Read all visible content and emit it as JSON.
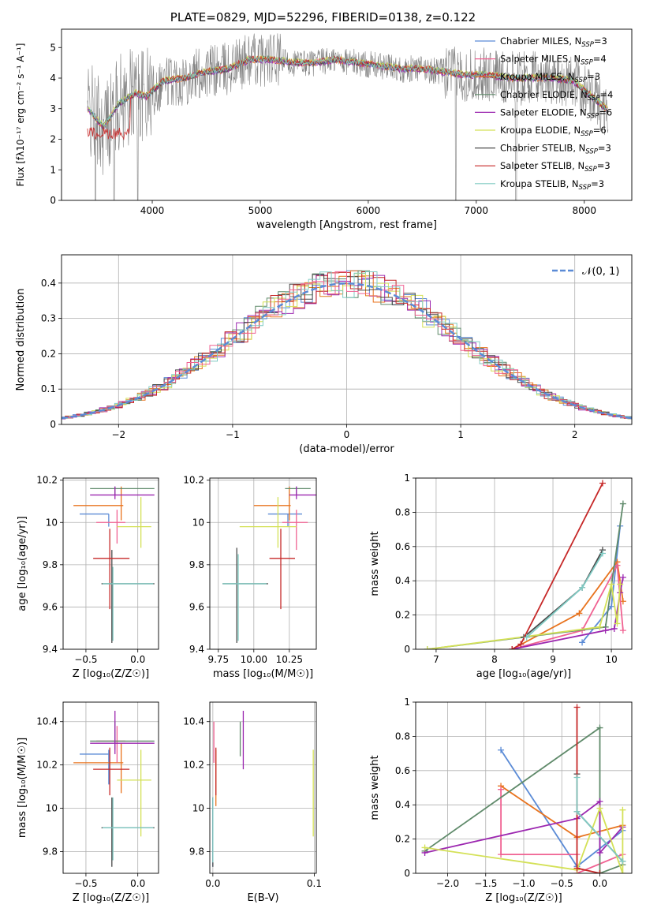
{
  "figure": {
    "title": "PLATE=0829, MJD=52296, FIBERID=0138, z=0.122"
  },
  "colors": {
    "Chabrier MILES": "#5b8bd6",
    "Salpeter MILES": "#e8731e",
    "Kroupa MILES": "#e07d19",
    "Chabrier ELODIE": "#5f8a6a",
    "Salpeter ELODIE": "#9c27b0",
    "Kroupa ELODIE": "#d4e157",
    "Chabrier STELIB": "#4a4a4a",
    "Salpeter STELIB": "#c62828",
    "Kroupa STELIB": "#80cbc4",
    "Salpeter MILES pink": "#f06292",
    "data": "#808080"
  },
  "chart_data": [
    {
      "id": "spectrum",
      "type": "line",
      "title": "PLATE=0829, MJD=52296, FIBERID=0138, z=0.122",
      "xlabel": "wavelength [Angstrom, rest frame]",
      "ylabel": "Flux [fλ10⁻¹⁷ erg cm⁻² s⁻¹ A⁻¹]",
      "xlim": [
        3160,
        8440
      ],
      "ylim": [
        0,
        5.6
      ],
      "xticks": [
        4000,
        5000,
        6000,
        7000,
        8000
      ],
      "yticks": [
        0,
        1,
        2,
        3,
        4,
        5
      ],
      "grid": false,
      "legend_position": "upper right",
      "series": [
        {
          "name": "Chabrier MILES, N_SSP=3",
          "legend": "Chabrier MILES, N",
          "sub": "SSP",
          "suffix": "=3",
          "color": "#5b8bd6"
        },
        {
          "name": "Salpeter MILES, N_SSP=4",
          "legend": "Salpeter MILES, N",
          "sub": "SSP",
          "suffix": "=4",
          "color": "#f06292"
        },
        {
          "name": "Kroupa MILES, N_SSP=3",
          "legend": "Kroupa MILES, N",
          "sub": "SSP",
          "suffix": "=3",
          "color": "#e8731e"
        },
        {
          "name": "Chabrier ELODIE, N_SSP=4",
          "legend": "Chabrier ELODIE, N",
          "sub": "SSP",
          "suffix": "=4",
          "color": "#5f8a6a"
        },
        {
          "name": "Salpeter ELODIE, N_SSP=6",
          "legend": "Salpeter ELODIE, N",
          "sub": "SSP",
          "suffix": "=6",
          "color": "#9c27b0"
        },
        {
          "name": "Kroupa ELODIE, N_SSP=6",
          "legend": "Kroupa ELODIE, N",
          "sub": "SSP",
          "suffix": "=6",
          "color": "#d4e157"
        },
        {
          "name": "Chabrier STELIB, N_SSP=3",
          "legend": "Chabrier STELIB, N",
          "sub": "SSP",
          "suffix": "=3",
          "color": "#4a4a4a"
        },
        {
          "name": "Salpeter STELIB, N_SSP=3",
          "legend": "Salpeter STELIB, N",
          "sub": "SSP",
          "suffix": "=3",
          "color": "#c62828"
        },
        {
          "name": "Kroupa STELIB, N_SSP=3",
          "legend": "Kroupa STELIB, N",
          "sub": "SSP",
          "suffix": "=3",
          "color": "#80cbc4"
        }
      ],
      "approx_model_flux": {
        "x": [
          3400,
          3550,
          3700,
          3850,
          3950,
          4100,
          4300,
          4500,
          4700,
          4900,
          5100,
          5300,
          5500,
          5700,
          5900,
          6100,
          6300,
          6500,
          6700,
          6900,
          7100,
          7300,
          7500,
          7700,
          7900,
          8100,
          8200
        ],
        "y": [
          3.0,
          2.4,
          3.2,
          3.5,
          3.4,
          3.9,
          4.0,
          4.2,
          4.3,
          4.6,
          4.6,
          4.5,
          4.5,
          4.6,
          4.5,
          4.4,
          4.3,
          4.3,
          4.2,
          4.1,
          4.1,
          4.0,
          4.0,
          4.0,
          3.9,
          3.3,
          3.0
        ]
      }
    },
    {
      "id": "residuals",
      "type": "step",
      "xlabel": "(data-model)/error",
      "ylabel": "Normed distribution",
      "xlim": [
        -2.5,
        2.5
      ],
      "ylim": [
        0,
        0.48
      ],
      "xticks": [
        -2,
        -1,
        0,
        1,
        2
      ],
      "xticklabels": [
        "−2",
        "−1",
        "0",
        "1",
        "2"
      ],
      "yticks": [
        0,
        0.1,
        0.2,
        0.3,
        0.4
      ],
      "grid": true,
      "legend": "𝒩(0, 1)",
      "legend_position": "upper right",
      "gaussian": {
        "mu": 0,
        "sigma": 1
      }
    },
    {
      "id": "age_vs_Z",
      "type": "scatter",
      "xlabel": "Z [log₁₀(Z/Z☉)]",
      "ylabel": "age  [log₁₀(age/yr)]",
      "xlim": [
        -0.72,
        0.2
      ],
      "ylim": [
        9.4,
        10.21
      ],
      "xticks": [
        -0.5,
        0.0
      ],
      "xticklabels": [
        "−0.5",
        "0.0"
      ],
      "yticks": [
        9.4,
        9.6,
        9.8,
        10.0,
        10.2
      ],
      "grid": true,
      "points": [
        {
          "x": -0.28,
          "y": 10.04,
          "xerr": [
            0.28,
            0.0
          ],
          "yerr": [
            0.06,
            0.0
          ],
          "color": "#5b8bd6"
        },
        {
          "x": -0.16,
          "y": 10.08,
          "xerr": [
            0.46,
            0.02
          ],
          "yerr": [
            0.07,
            0.09
          ],
          "color": "#e8731e"
        },
        {
          "x": -0.2,
          "y": 10.0,
          "xerr": [
            0.2,
            0.08
          ],
          "yerr": [
            0.1,
            0.06
          ],
          "color": "#f06292"
        },
        {
          "x": -0.22,
          "y": 10.16,
          "xerr": [
            0.24,
            0.38
          ],
          "yerr": [
            0.03,
            0.01
          ],
          "color": "#5f8a6a"
        },
        {
          "x": -0.22,
          "y": 10.13,
          "xerr": [
            0.24,
            0.38
          ],
          "yerr": [
            0.02,
            0.04
          ],
          "color": "#9c27b0"
        },
        {
          "x": 0.03,
          "y": 9.98,
          "xerr": [
            0.23,
            0.1
          ],
          "yerr": [
            0.1,
            0.14
          ],
          "color": "#d4e157"
        },
        {
          "x": -0.25,
          "y": 9.71,
          "xerr": [
            0.1,
            0.41
          ],
          "yerr": [
            0.28,
            0.16
          ],
          "color": "#4a4a4a"
        },
        {
          "x": -0.27,
          "y": 9.83,
          "xerr": [
            0.16,
            0.19
          ],
          "yerr": [
            0.24,
            0.14
          ],
          "color": "#c62828"
        },
        {
          "x": -0.24,
          "y": 9.71,
          "xerr": [
            0.1,
            0.39
          ],
          "yerr": [
            0.27,
            0.08
          ],
          "color": "#80cbc4"
        }
      ]
    },
    {
      "id": "age_vs_mass",
      "type": "scatter",
      "xlabel": "mass [log₁₀(M/M☉)]",
      "ylabel": "",
      "xlim": [
        9.69,
        10.44
      ],
      "ylim": [
        9.4,
        10.21
      ],
      "xticks": [
        9.75,
        10.0,
        10.25
      ],
      "xticklabels": [
        "9.75",
        "10.00",
        "10.25"
      ],
      "yticks": [
        9.4,
        9.6,
        9.8,
        10.0,
        10.2
      ],
      "grid": true,
      "points": [
        {
          "x": 10.24,
          "y": 10.04,
          "xerr": [
            0.14,
            0.1
          ],
          "yerr": [
            0.06,
            0.0
          ],
          "color": "#5b8bd6"
        },
        {
          "x": 10.25,
          "y": 10.08,
          "xerr": [
            0.25,
            0.01
          ],
          "yerr": [
            0.07,
            0.09
          ],
          "color": "#e8731e"
        },
        {
          "x": 10.3,
          "y": 10.0,
          "xerr": [
            0.1,
            0.08
          ],
          "yerr": [
            0.13,
            0.06
          ],
          "color": "#f06292"
        },
        {
          "x": 10.3,
          "y": 10.16,
          "xerr": [
            0.08,
            0.1
          ],
          "yerr": [
            0.03,
            0.01
          ],
          "color": "#5f8a6a"
        },
        {
          "x": 10.3,
          "y": 10.13,
          "xerr": [
            0.05,
            0.16
          ],
          "yerr": [
            0.02,
            0.04
          ],
          "color": "#9c27b0"
        },
        {
          "x": 10.17,
          "y": 9.98,
          "xerr": [
            0.27,
            0.13
          ],
          "yerr": [
            0.1,
            0.14
          ],
          "color": "#d4e157"
        },
        {
          "x": 9.88,
          "y": 9.71,
          "xerr": [
            0.1,
            0.22
          ],
          "yerr": [
            0.28,
            0.17
          ],
          "color": "#4a4a4a"
        },
        {
          "x": 10.19,
          "y": 9.83,
          "xerr": [
            0.08,
            0.1
          ],
          "yerr": [
            0.24,
            0.14
          ],
          "color": "#c62828"
        },
        {
          "x": 9.89,
          "y": 9.71,
          "xerr": [
            0.11,
            0.2
          ],
          "yerr": [
            0.27,
            0.14
          ],
          "color": "#80cbc4"
        }
      ]
    },
    {
      "id": "mass_weight_vs_age",
      "type": "line",
      "xlabel": "age  [log₁₀(age/yr)]",
      "ylabel": "mass weight",
      "xlim": [
        6.65,
        10.35
      ],
      "ylim": [
        0,
        1.0
      ],
      "xticks": [
        7,
        8,
        9,
        10
      ],
      "yticks": [
        0.0,
        0.2,
        0.4,
        0.6,
        0.8,
        1.0
      ],
      "grid": true,
      "series": [
        {
          "color": "#5b8bd6",
          "x": [
            9.5,
            10.0,
            10.15
          ],
          "y": [
            0.04,
            0.25,
            0.72
          ]
        },
        {
          "color": "#e8731e",
          "x": [
            8.3,
            9.45,
            10.1,
            10.2
          ],
          "y": [
            0.0,
            0.21,
            0.51,
            0.28
          ]
        },
        {
          "color": "#f06292",
          "x": [
            8.3,
            9.5,
            10.1,
            10.2
          ],
          "y": [
            0.0,
            0.11,
            0.49,
            0.11
          ]
        },
        {
          "color": "#5f8a6a",
          "x": [
            6.85,
            9.9,
            10.2
          ],
          "y": [
            0.0,
            0.13,
            0.85
          ]
        },
        {
          "color": "#9c27b0",
          "x": [
            8.3,
            9.9,
            10.05,
            10.15,
            10.2
          ],
          "y": [
            0.0,
            0.11,
            0.12,
            0.33,
            0.42
          ]
        },
        {
          "color": "#d4e157",
          "x": [
            6.85,
            9.8,
            10.0,
            10.1,
            10.15
          ],
          "y": [
            0.0,
            0.13,
            0.38,
            0.15,
            0.38
          ]
        },
        {
          "color": "#4a4a4a",
          "x": [
            8.5,
            9.5,
            9.85
          ],
          "y": [
            0.07,
            0.36,
            0.58
          ]
        },
        {
          "color": "#c62828",
          "x": [
            8.3,
            8.45,
            9.85
          ],
          "y": [
            0.0,
            0.03,
            0.97
          ]
        },
        {
          "color": "#80cbc4",
          "x": [
            8.55,
            9.5,
            9.85
          ],
          "y": [
            0.07,
            0.36,
            0.56
          ]
        }
      ]
    },
    {
      "id": "mass_vs_Z",
      "type": "scatter",
      "xlabel": "Z [log₁₀(Z/Z☉)]",
      "ylabel": "mass [log₁₀(M/M☉)]",
      "xlim": [
        -0.72,
        0.2
      ],
      "ylim": [
        9.7,
        10.49
      ],
      "xticks": [
        -0.5,
        0.0
      ],
      "xticklabels": [
        "−0.5",
        "0.0"
      ],
      "yticks": [
        9.8,
        10.0,
        10.2,
        10.4
      ],
      "grid": true,
      "points": [
        {
          "x": -0.28,
          "y": 10.25,
          "xerr": [
            0.28,
            0.0
          ],
          "yerr": [
            0.14,
            0.02
          ],
          "color": "#5b8bd6"
        },
        {
          "x": -0.16,
          "y": 10.21,
          "xerr": [
            0.46,
            0.02
          ],
          "yerr": [
            0.14,
            0.09
          ],
          "color": "#e8731e"
        },
        {
          "x": -0.2,
          "y": 10.31,
          "xerr": [
            0.2,
            0.08
          ],
          "yerr": [
            0.1,
            0.07
          ],
          "color": "#f06292"
        },
        {
          "x": -0.22,
          "y": 10.31,
          "xerr": [
            0.24,
            0.38
          ],
          "yerr": [
            0.04,
            0.09
          ],
          "color": "#5f8a6a"
        },
        {
          "x": -0.22,
          "y": 10.3,
          "xerr": [
            0.24,
            0.38
          ],
          "yerr": [
            0.05,
            0.15
          ],
          "color": "#9c27b0"
        },
        {
          "x": 0.03,
          "y": 10.13,
          "xerr": [
            0.23,
            0.1
          ],
          "yerr": [
            0.26,
            0.14
          ],
          "color": "#d4e157"
        },
        {
          "x": -0.25,
          "y": 9.91,
          "xerr": [
            0.1,
            0.41
          ],
          "yerr": [
            0.18,
            0.14
          ],
          "color": "#4a4a4a"
        },
        {
          "x": -0.27,
          "y": 10.18,
          "xerr": [
            0.16,
            0.19
          ],
          "yerr": [
            0.12,
            0.1
          ],
          "color": "#c62828"
        },
        {
          "x": -0.24,
          "y": 9.91,
          "xerr": [
            0.1,
            0.39
          ],
          "yerr": [
            0.15,
            0.14
          ],
          "color": "#80cbc4"
        }
      ]
    },
    {
      "id": "mass_vs_EBV",
      "type": "scatter",
      "xlabel": "E(B-V)",
      "ylabel": "",
      "xlim": [
        -0.003,
        0.102
      ],
      "ylim": [
        9.7,
        10.49
      ],
      "xticks": [
        0.0,
        0.1
      ],
      "xticklabels": [
        "0.0",
        "0.1"
      ],
      "yticks": [
        9.8,
        10.0,
        10.2,
        10.4
      ],
      "grid": true,
      "points": [
        {
          "x": 0.0,
          "y": 9.9,
          "yerr": [
            0.17,
            0.15
          ],
          "color": "#5b8bd6"
        },
        {
          "x": 0.003,
          "y": 10.15,
          "yerr": [
            0.14,
            0.12
          ],
          "color": "#e8731e"
        },
        {
          "x": 0.001,
          "y": 10.31,
          "yerr": [
            0.1,
            0.09
          ],
          "color": "#f06292"
        },
        {
          "x": 0.027,
          "y": 10.3,
          "yerr": [
            0.06,
            0.1
          ],
          "color": "#5f8a6a"
        },
        {
          "x": 0.03,
          "y": 10.31,
          "yerr": [
            0.13,
            0.14
          ],
          "color": "#9c27b0"
        },
        {
          "x": 0.099,
          "y": 10.13,
          "yerr": [
            0.26,
            0.14
          ],
          "color": "#d4e157"
        },
        {
          "x": 0.0,
          "y": 9.92,
          "yerr": [
            0.19,
            0.13
          ],
          "color": "#4a4a4a"
        },
        {
          "x": 0.003,
          "y": 10.18,
          "yerr": [
            0.12,
            0.1
          ],
          "color": "#c62828"
        },
        {
          "x": 0.0,
          "y": 9.91,
          "yerr": [
            0.16,
            0.14
          ],
          "color": "#80cbc4"
        }
      ]
    },
    {
      "id": "mass_weight_vs_Z",
      "type": "line",
      "xlabel": "Z [log₁₀(Z/Z☉)]",
      "ylabel": "mass weight",
      "xlim": [
        -2.42,
        0.42
      ],
      "ylim": [
        0,
        1.0
      ],
      "xticks": [
        -2.0,
        -1.5,
        -1.0,
        -0.5,
        0.0
      ],
      "xticklabels": [
        "−2.0",
        "−1.5",
        "−1.0",
        "−0.5",
        "0.0"
      ],
      "yticks": [
        0.0,
        0.2,
        0.4,
        0.6,
        0.8,
        1.0
      ],
      "grid": true,
      "series": [
        {
          "color": "#5b8bd6",
          "x": [
            -1.3,
            -0.3,
            0.3
          ],
          "y": [
            0.72,
            0.04,
            0.25
          ]
        },
        {
          "color": "#e8731e",
          "x": [
            -1.3,
            -0.3,
            0.3
          ],
          "y": [
            0.51,
            0.21,
            0.28
          ]
        },
        {
          "color": "#f06292",
          "x": [
            -1.3,
            -1.3,
            -0.3,
            -0.3,
            0.3
          ],
          "y": [
            0.49,
            0.11,
            0.11,
            0.0,
            0.11
          ]
        },
        {
          "color": "#5f8a6a",
          "x": [
            -2.3,
            0.0,
            0.0,
            0.3
          ],
          "y": [
            0.13,
            0.85,
            0.0,
            0.05
          ]
        },
        {
          "color": "#9c27b0",
          "x": [
            -2.3,
            -0.3,
            0.0,
            0.0,
            0.3
          ],
          "y": [
            0.12,
            0.32,
            0.42,
            0.12,
            0.27
          ]
        },
        {
          "color": "#d4e157",
          "x": [
            -2.3,
            -0.3,
            0.0,
            0.3,
            0.3
          ],
          "y": [
            0.15,
            0.02,
            0.38,
            0.0,
            0.37
          ]
        },
        {
          "color": "#4a4a4a",
          "x": [
            -0.3,
            -0.3,
            0.3
          ],
          "y": [
            0.58,
            0.36,
            0.07
          ]
        },
        {
          "color": "#c62828",
          "x": [
            -0.3,
            -0.3,
            0.0
          ],
          "y": [
            0.97,
            0.03,
            0.0
          ]
        },
        {
          "color": "#80cbc4",
          "x": [
            -0.3,
            -0.3,
            0.3
          ],
          "y": [
            0.56,
            0.36,
            0.07
          ]
        }
      ]
    }
  ]
}
